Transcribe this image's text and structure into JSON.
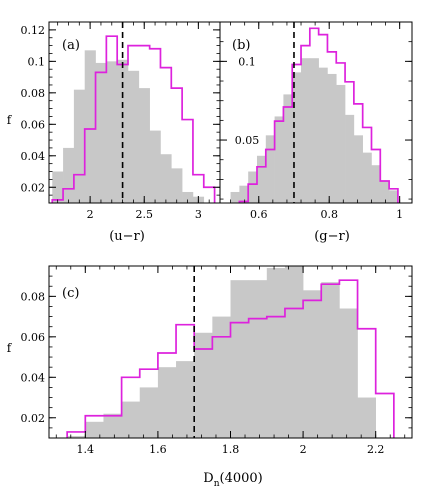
{
  "colors": {
    "shaded": "#c8c8c8",
    "outline": "#dd22dd",
    "axis": "#000000",
    "vline": "#000000"
  },
  "chart_data": [
    {
      "id": "a",
      "type": "bar",
      "panel_label": "(a)",
      "xlabel": "(u−r)",
      "ylabel": "f",
      "xlim": [
        1.62,
        3.2
      ],
      "ylim": [
        0.01,
        0.125
      ],
      "xticks": [
        2,
        2.5,
        3
      ],
      "xtick_labels": [
        "2",
        "2.5",
        "3"
      ],
      "yticks": [
        0.02,
        0.04,
        0.06,
        0.08,
        0.1,
        0.12
      ],
      "ytick_labels": [
        "0.02",
        "0.04",
        "0.06",
        "0.08",
        "0.1",
        "0.12"
      ],
      "vline": 2.3,
      "series": [
        {
          "style": "filled",
          "bin_edges": [
            1.65,
            1.75,
            1.85,
            1.95,
            2.05,
            2.15,
            2.25,
            2.35,
            2.45,
            2.55,
            2.65,
            2.75,
            2.85,
            2.95,
            3.05
          ],
          "values": [
            0.03,
            0.045,
            0.082,
            0.107,
            0.099,
            0.1,
            0.101,
            0.094,
            0.083,
            0.056,
            0.041,
            0.032,
            0.017,
            0.014
          ]
        },
        {
          "style": "step",
          "bin_edges": [
            1.65,
            1.75,
            1.85,
            1.95,
            2.05,
            2.15,
            2.25,
            2.35,
            2.45,
            2.55,
            2.65,
            2.75,
            2.85,
            2.95,
            3.05,
            3.15
          ],
          "values": [
            0.012,
            0.019,
            0.028,
            0.057,
            0.093,
            0.116,
            0.098,
            0.11,
            0.11,
            0.108,
            0.096,
            0.083,
            0.063,
            0.028,
            0.02
          ]
        }
      ]
    },
    {
      "id": "b",
      "type": "bar",
      "panel_label": "(b)",
      "xlabel": "(g−r)",
      "ylabel": "",
      "xlim": [
        0.49,
        1.035
      ],
      "ylim": [
        0.01,
        0.125
      ],
      "xticks": [
        0.6,
        0.8,
        1
      ],
      "xtick_labels": [
        "0.6",
        "0.8",
        "1"
      ],
      "yticks": [
        0.05,
        0.1
      ],
      "ytick_labels": [
        "0.05",
        "0.1"
      ],
      "vline": 0.7,
      "series": [
        {
          "style": "filled",
          "bin_edges": [
            0.52,
            0.545,
            0.57,
            0.595,
            0.62,
            0.645,
            0.67,
            0.695,
            0.72,
            0.745,
            0.77,
            0.795,
            0.82,
            0.845,
            0.87,
            0.895,
            0.92,
            0.945,
            0.97,
            0.995
          ],
          "values": [
            0.017,
            0.021,
            0.03,
            0.04,
            0.053,
            0.065,
            0.079,
            0.093,
            0.102,
            0.102,
            0.096,
            0.092,
            0.085,
            0.066,
            0.053,
            0.042,
            0.034,
            0.024,
            0.018
          ]
        },
        {
          "style": "step",
          "bin_edges": [
            0.545,
            0.57,
            0.595,
            0.62,
            0.645,
            0.67,
            0.695,
            0.72,
            0.745,
            0.77,
            0.795,
            0.82,
            0.845,
            0.87,
            0.895,
            0.92,
            0.945,
            0.97,
            0.995
          ],
          "values": [
            0.011,
            0.022,
            0.033,
            0.044,
            0.062,
            0.071,
            0.098,
            0.11,
            0.121,
            0.117,
            0.106,
            0.099,
            0.087,
            0.073,
            0.058,
            0.044,
            0.024,
            0.019
          ]
        }
      ]
    },
    {
      "id": "c",
      "type": "bar",
      "panel_label": "(c)",
      "xlabel": "D",
      "xlabel_sub": "n",
      "xlabel_rest": "(4000)",
      "ylabel": "f",
      "xlim": [
        1.3,
        2.3
      ],
      "ylim": [
        0.01,
        0.095
      ],
      "xticks": [
        1.4,
        1.6,
        1.8,
        2,
        2.2
      ],
      "xtick_labels": [
        "1.4",
        "1.6",
        "1.8",
        "2",
        "2.2"
      ],
      "yticks": [
        0.02,
        0.04,
        0.06,
        0.08
      ],
      "ytick_labels": [
        "0.02",
        "0.04",
        "0.06",
        "0.08"
      ],
      "vline": 1.7,
      "series": [
        {
          "style": "filled",
          "bin_edges": [
            1.35,
            1.4,
            1.45,
            1.5,
            1.55,
            1.6,
            1.65,
            1.7,
            1.75,
            1.8,
            1.85,
            1.9,
            1.95,
            2.0,
            2.05,
            2.1,
            2.15,
            2.2
          ],
          "values": [
            0.011,
            0.018,
            0.022,
            0.028,
            0.035,
            0.045,
            0.048,
            0.062,
            0.07,
            0.088,
            0.088,
            0.094,
            0.095,
            0.083,
            0.087,
            0.074,
            0.03
          ]
        },
        {
          "style": "step",
          "bin_edges": [
            1.35,
            1.4,
            1.45,
            1.5,
            1.55,
            1.6,
            1.65,
            1.7,
            1.75,
            1.8,
            1.85,
            1.9,
            1.95,
            2.0,
            2.05,
            2.1,
            2.15,
            2.2,
            2.25
          ],
          "values": [
            0.013,
            0.021,
            0.021,
            0.04,
            0.044,
            0.052,
            0.066,
            0.054,
            0.06,
            0.067,
            0.069,
            0.07,
            0.074,
            0.078,
            0.086,
            0.088,
            0.064,
            0.032
          ]
        }
      ]
    }
  ]
}
